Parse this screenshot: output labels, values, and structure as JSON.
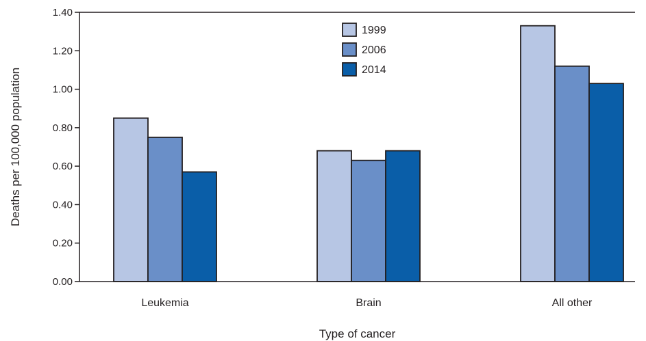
{
  "chart_data": {
    "type": "bar",
    "title": "",
    "xlabel": "Type of cancer",
    "ylabel": "Deaths per 100,000 population",
    "categories": [
      "Leukemia",
      "Brain",
      "All other"
    ],
    "series": [
      {
        "name": "1999",
        "values": [
          0.85,
          0.68,
          1.33
        ],
        "color": "#b7c6e4"
      },
      {
        "name": "2006",
        "values": [
          0.75,
          0.63,
          1.12
        ],
        "color": "#6a8fc8"
      },
      {
        "name": "2014",
        "values": [
          0.57,
          0.68,
          1.03
        ],
        "color": "#0a5ea8"
      }
    ],
    "ylim": [
      0,
      1.4
    ],
    "yticks": [
      "0.00",
      "0.20",
      "0.40",
      "0.60",
      "0.80",
      "1.00",
      "1.20",
      "1.40"
    ],
    "grid": false,
    "legend": "top-center"
  }
}
